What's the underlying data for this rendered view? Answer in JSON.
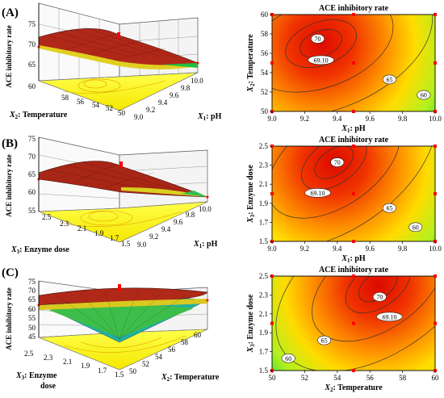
{
  "colors": {
    "surface_hot": "#c81e0a",
    "surface_warm": "#f0dc1e",
    "surface_cool": "#1ec850",
    "floor": "#ffff3c",
    "contour_hot": "#dc0a00",
    "contour_mid": "#ffdc00",
    "contour_cool": "#00d2ff",
    "design_point": "#ff0000",
    "ink": "#000000"
  },
  "chart_data": [
    {
      "type": "surface3d",
      "panel_label": "(A)",
      "zlabel": "ACE inhibitory rate",
      "x_axis": {
        "label_var": "X",
        "label_sub": "1",
        "label_rest": ": pH",
        "ticks": [
          "9.0",
          "9.2",
          "9.4",
          "9.6",
          "9.8",
          "10.0"
        ]
      },
      "y_axis": {
        "label_var": "X",
        "label_sub": "2",
        "label_rest": ": Temperature",
        "ticks": [
          "50",
          "52",
          "54",
          "56",
          "58"
        ]
      },
      "z_ticks": [
        "60",
        "65",
        "70",
        "75"
      ],
      "zlim": [
        60,
        75
      ]
    },
    {
      "type": "contour",
      "title": "ACE inhibitory rate",
      "x_axis": {
        "label_var": "X",
        "label_sub": "1",
        "label_rest": ": pH",
        "ticks": [
          "9.0",
          "9.2",
          "9.4",
          "9.6",
          "9.8",
          "10.0"
        ],
        "range": [
          9.0,
          10.0
        ]
      },
      "y_axis": {
        "label_var": "X",
        "label_sub": "2",
        "label_rest": ": Temperature",
        "ticks": [
          "50",
          "52",
          "54",
          "56",
          "58",
          "60"
        ],
        "range": [
          50,
          60
        ]
      },
      "optimum": {
        "x": 9.3,
        "y": 57
      },
      "contour_labels": [
        {
          "text": "70",
          "x": 9.28,
          "y": 57.5
        },
        {
          "text": "69.10",
          "x": 9.3,
          "y": 55.3
        },
        {
          "text": "65",
          "x": 9.72,
          "y": 53.3
        },
        {
          "text": "60",
          "x": 9.93,
          "y": 51.7
        }
      ]
    },
    {
      "type": "surface3d",
      "panel_label": "(B)",
      "zlabel": "ACE inhibitory rate",
      "x_axis": {
        "label_var": "X",
        "label_sub": "1",
        "label_rest": ": pH",
        "ticks": [
          "9.0",
          "9.2",
          "9.4",
          "9.6",
          "9.8",
          "10.0"
        ]
      },
      "y_axis": {
        "label_var": "X",
        "label_sub": "3",
        "label_rest": ": Enzyme dose",
        "ticks": [
          "1.5",
          "1.7",
          "1.9",
          "2.1",
          "2.3",
          "2.5"
        ]
      },
      "z_ticks": [
        "55",
        "60",
        "65",
        "70",
        "75"
      ],
      "zlim": [
        55,
        75
      ]
    },
    {
      "type": "contour",
      "title": "ACE inhibitory rate",
      "x_axis": {
        "label_var": "X",
        "label_sub": "1",
        "label_rest": ": pH",
        "ticks": [
          "9.0",
          "9.2",
          "9.4",
          "9.6",
          "9.8",
          "10.0"
        ],
        "range": [
          9.0,
          10.0
        ]
      },
      "y_axis": {
        "label_var": "X",
        "label_sub": "3",
        "label_rest": ": Enzyme dose",
        "ticks": [
          "1.5",
          "1.7",
          "1.9",
          "2.1",
          "2.3",
          "2.5"
        ],
        "range": [
          1.5,
          2.5
        ]
      },
      "optimum": {
        "x": 9.38,
        "y": 2.33
      },
      "contour_labels": [
        {
          "text": "70",
          "x": 9.4,
          "y": 2.33
        },
        {
          "text": "69.10",
          "x": 9.28,
          "y": 2.01
        },
        {
          "text": "65",
          "x": 9.72,
          "y": 1.85
        },
        {
          "text": "60",
          "x": 9.88,
          "y": 1.65
        }
      ]
    },
    {
      "type": "surface3d",
      "panel_label": "(C)",
      "zlabel": "ACE inhibitory rate",
      "x_axis": {
        "label_var": "X",
        "label_sub": "2",
        "label_rest": ": Temperature",
        "ticks": [
          "50",
          "52",
          "54",
          "56",
          "58",
          "60"
        ]
      },
      "y_axis": {
        "label_var": "X",
        "label_sub": "3",
        "label_rest": ": Enzyme",
        "label_rest2": "dose",
        "ticks": [
          "1.5",
          "1.7",
          "1.9",
          "2.1",
          "2.3",
          "2.5"
        ]
      },
      "z_ticks": [
        "45",
        "50",
        "55",
        "60",
        "65",
        "70",
        "75"
      ],
      "zlim": [
        45,
        75
      ]
    },
    {
      "type": "contour",
      "title": "ACE inhibitory rate",
      "x_axis": {
        "label_var": "X",
        "label_sub": "2",
        "label_rest": ": Temperature",
        "ticks": [
          "50",
          "52",
          "54",
          "56",
          "58",
          "60"
        ],
        "range": [
          50,
          60
        ]
      },
      "y_axis": {
        "label_var": "X",
        "label_sub": "3",
        "label_rest": ": Enzyme dose",
        "ticks": [
          "1.5",
          "1.7",
          "1.9",
          "2.1",
          "2.3",
          "2.5"
        ],
        "range": [
          1.5,
          2.5
        ]
      },
      "optimum": {
        "x": 56.5,
        "y": 2.4
      },
      "contour_labels": [
        {
          "text": "70",
          "x": 56.6,
          "y": 2.28
        },
        {
          "text": "69.10",
          "x": 57.2,
          "y": 2.07
        },
        {
          "text": "65",
          "x": 53.2,
          "y": 1.82
        },
        {
          "text": "60",
          "x": 51.0,
          "y": 1.63
        }
      ]
    }
  ]
}
